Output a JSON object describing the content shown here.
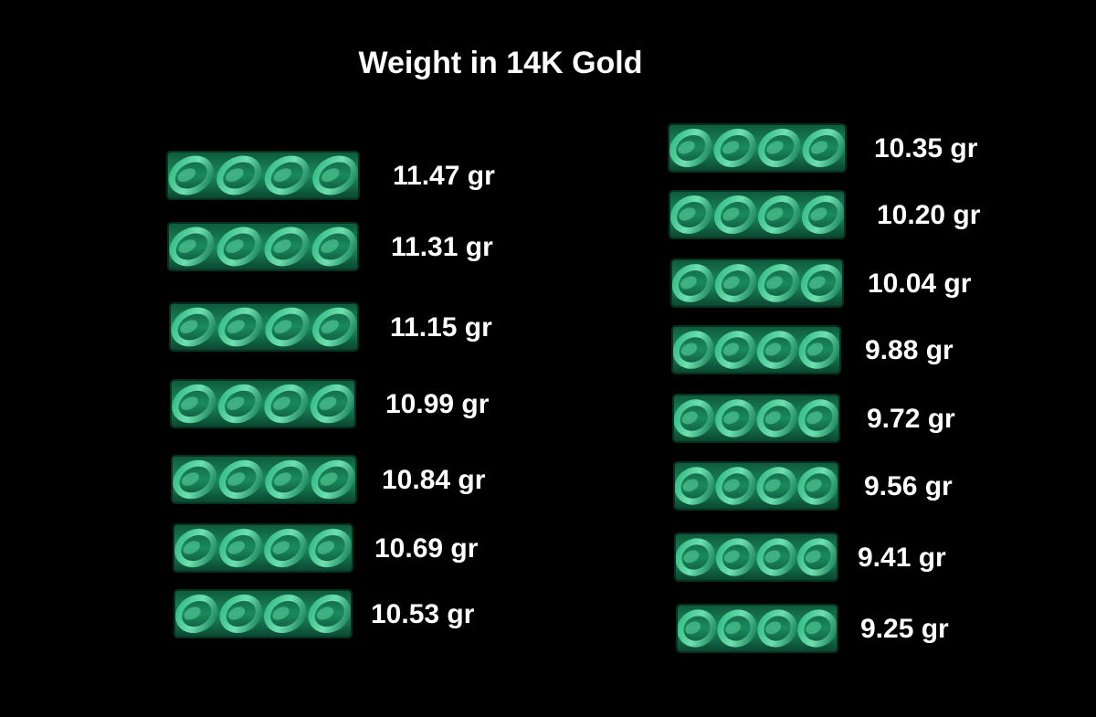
{
  "title": "Weight in 14K Gold",
  "left": [
    "11.47 gr",
    "11.31 gr",
    "11.15 gr",
    "10.99 gr",
    "10.84 gr",
    "10.69 gr",
    "10.53 gr"
  ],
  "right": [
    "10.35 gr",
    "10.20 gr",
    "10.04 gr",
    "9.88 gr",
    "9.72 gr",
    "9.56 gr",
    "9.41 gr",
    "9.25 gr"
  ]
}
